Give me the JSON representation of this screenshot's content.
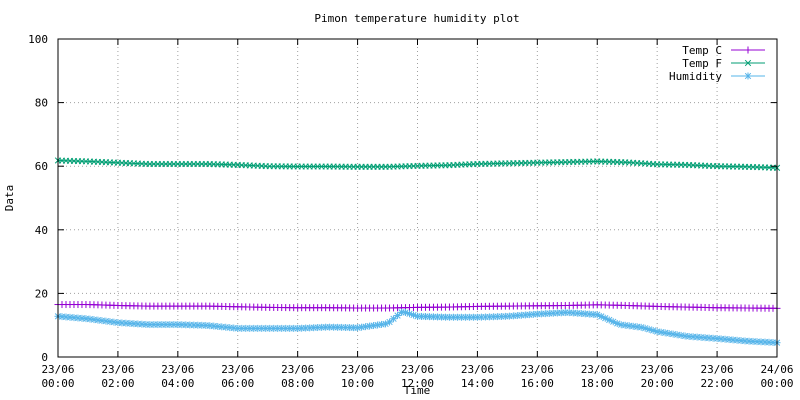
{
  "chart_data": {
    "type": "line",
    "title": "Pimon temperature   humidity plot",
    "xlabel": "Time",
    "ylabel": "Data",
    "ylim": [
      0,
      100
    ],
    "xlim_hours": [
      0,
      24
    ],
    "y_ticks": [
      "0",
      "20",
      "40",
      "60",
      "80",
      "100"
    ],
    "x_ticks": [
      {
        "day": "23/06",
        "time": "00:00"
      },
      {
        "day": "23/06",
        "time": "02:00"
      },
      {
        "day": "23/06",
        "time": "04:00"
      },
      {
        "day": "23/06",
        "time": "06:00"
      },
      {
        "day": "23/06",
        "time": "08:00"
      },
      {
        "day": "23/06",
        "time": "10:00"
      },
      {
        "day": "23/06",
        "time": "12:00"
      },
      {
        "day": "23/06",
        "time": "14:00"
      },
      {
        "day": "23/06",
        "time": "16:00"
      },
      {
        "day": "23/06",
        "time": "18:00"
      },
      {
        "day": "23/06",
        "time": "20:00"
      },
      {
        "day": "23/06",
        "time": "22:00"
      },
      {
        "day": "24/06",
        "time": "00:00"
      }
    ],
    "grid": true,
    "legend_position": "top-right",
    "series": [
      {
        "name": "Temp C",
        "color": "#9400d3",
        "marker": "plus",
        "points": [
          [
            "00:00",
            16.5
          ],
          [
            "01:00",
            16.5
          ],
          [
            "02:00",
            16.2
          ],
          [
            "03:00",
            16.0
          ],
          [
            "04:00",
            16.0
          ],
          [
            "05:00",
            16.0
          ],
          [
            "06:00",
            15.8
          ],
          [
            "07:00",
            15.6
          ],
          [
            "08:00",
            15.5
          ],
          [
            "09:00",
            15.5
          ],
          [
            "10:00",
            15.4
          ],
          [
            "11:00",
            15.4
          ],
          [
            "12:00",
            15.6
          ],
          [
            "13:00",
            15.7
          ],
          [
            "14:00",
            15.9
          ],
          [
            "15:00",
            16.0
          ],
          [
            "16:00",
            16.1
          ],
          [
            "17:00",
            16.2
          ],
          [
            "18:00",
            16.4
          ],
          [
            "19:00",
            16.2
          ],
          [
            "20:00",
            15.9
          ],
          [
            "21:00",
            15.7
          ],
          [
            "22:00",
            15.5
          ],
          [
            "23:00",
            15.4
          ],
          [
            "24:00",
            15.3
          ]
        ]
      },
      {
        "name": "Temp F",
        "color": "#009e73",
        "marker": "cross",
        "points": [
          [
            "00:00",
            61.8
          ],
          [
            "01:00",
            61.5
          ],
          [
            "02:00",
            61.1
          ],
          [
            "03:00",
            60.7
          ],
          [
            "04:00",
            60.7
          ],
          [
            "05:00",
            60.7
          ],
          [
            "06:00",
            60.4
          ],
          [
            "07:00",
            60.0
          ],
          [
            "08:00",
            59.9
          ],
          [
            "09:00",
            59.9
          ],
          [
            "10:00",
            59.8
          ],
          [
            "11:00",
            59.8
          ],
          [
            "12:00",
            60.1
          ],
          [
            "13:00",
            60.3
          ],
          [
            "14:00",
            60.7
          ],
          [
            "15:00",
            60.9
          ],
          [
            "16:00",
            61.1
          ],
          [
            "17:00",
            61.3
          ],
          [
            "18:00",
            61.5
          ],
          [
            "19:00",
            61.2
          ],
          [
            "20:00",
            60.6
          ],
          [
            "21:00",
            60.4
          ],
          [
            "22:00",
            60.0
          ],
          [
            "23:00",
            59.8
          ],
          [
            "24:00",
            59.5
          ]
        ]
      },
      {
        "name": "Humidity",
        "color": "#56b4e9",
        "marker": "star",
        "points": [
          [
            "00:00",
            12.8
          ],
          [
            "01:00",
            12.0
          ],
          [
            "02:00",
            10.8
          ],
          [
            "03:00",
            10.2
          ],
          [
            "04:00",
            10.2
          ],
          [
            "05:00",
            9.9
          ],
          [
            "06:00",
            9.0
          ],
          [
            "07:00",
            9.0
          ],
          [
            "08:00",
            9.0
          ],
          [
            "09:00",
            9.4
          ],
          [
            "10:00",
            9.2
          ],
          [
            "11:00",
            10.5
          ],
          [
            "11:30",
            14.3
          ],
          [
            "12:00",
            12.8
          ],
          [
            "13:00",
            12.5
          ],
          [
            "14:00",
            12.5
          ],
          [
            "15:00",
            12.8
          ],
          [
            "16:00",
            13.5
          ],
          [
            "17:00",
            14.0
          ],
          [
            "18:00",
            13.3
          ],
          [
            "18:45",
            10.2
          ],
          [
            "19:30",
            9.3
          ],
          [
            "20:00",
            8.0
          ],
          [
            "21:00",
            6.5
          ],
          [
            "22:00",
            5.8
          ],
          [
            "23:00",
            5.0
          ],
          [
            "24:00",
            4.5
          ]
        ]
      }
    ]
  }
}
